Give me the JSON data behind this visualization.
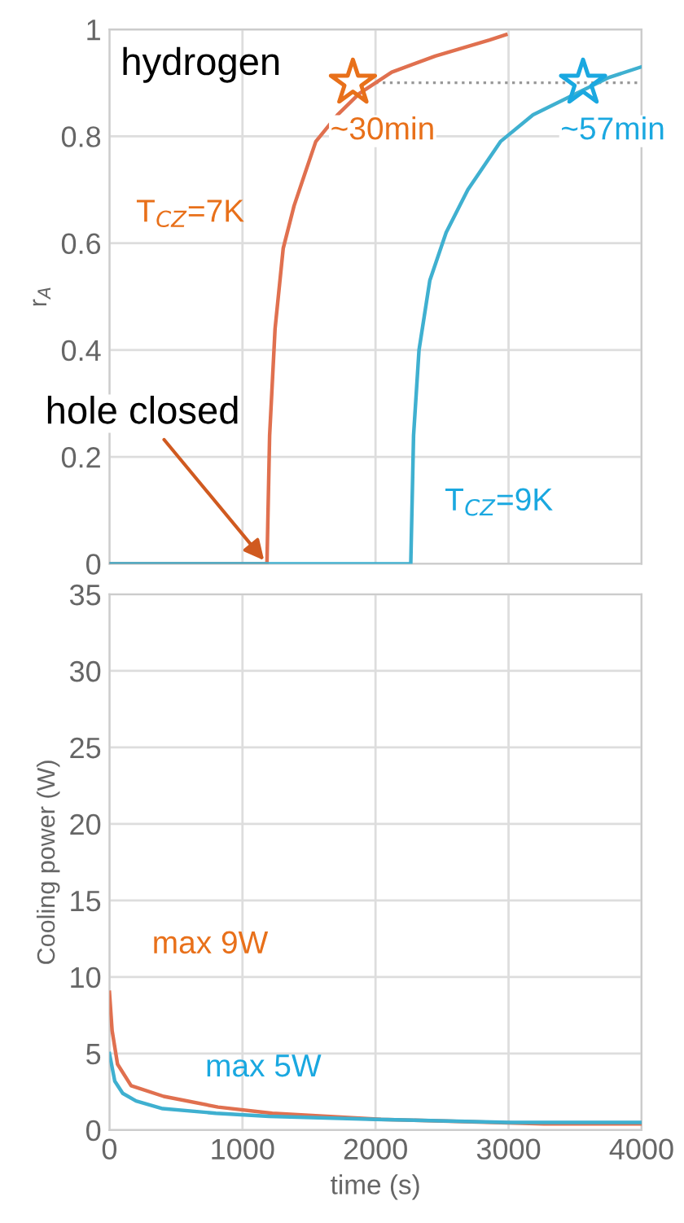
{
  "chart_data": [
    {
      "type": "line",
      "ylabel": "r$_{A}$",
      "xlim": [
        0,
        4000
      ],
      "xticks": [
        0,
        1000,
        2000,
        3000,
        4000
      ],
      "ylim": [
        0,
        1
      ],
      "yticks": [
        0,
        0.2,
        0.4,
        0.6,
        0.8,
        1
      ],
      "tick_labels": "y",
      "grid": true,
      "legend": false,
      "series": [
        {
          "name": "T$_{CZ}$=7K",
          "color": "#e0704f",
          "x": [
            0,
            1184,
            1204,
            1245,
            1306,
            1388,
            1469,
            1551,
            1714,
            1878,
            2122,
            2449,
            2857,
            2980
          ],
          "values": [
            0,
            0,
            0.24,
            0.44,
            0.59,
            0.67,
            0.73,
            0.79,
            0.84,
            0.88,
            0.92,
            0.95,
            0.98,
            0.99
          ]
        },
        {
          "name": "T$_{CZ}$=9K",
          "color": "#3fb0d0",
          "x": [
            0,
            2265,
            2286,
            2327,
            2408,
            2531,
            2694,
            2939,
            3184,
            3510,
            3755,
            4000
          ],
          "values": [
            0,
            0,
            0.24,
            0.4,
            0.53,
            0.62,
            0.7,
            0.79,
            0.84,
            0.88,
            0.91,
            0.93
          ]
        },
        {
          "type": "scatter",
          "marker": "star",
          "x": [
            1830,
            3560
          ],
          "values": [
            0.9,
            0.9
          ],
          "colors": [
            "#e8701a",
            "#1aa8e0"
          ]
        }
      ],
      "ref_lines": [
        {
          "axis": "y",
          "value": 0.9,
          "label": "hydrogen",
          "color": "#999999",
          "line_style": "dotted"
        }
      ],
      "annotations": [
        {
          "text": "~30min",
          "x": 1830,
          "y": 0.9
        },
        {
          "text": "~57min",
          "x": 3560,
          "y": 0.9
        },
        {
          "text": "hole closed",
          "x": 1184,
          "y": 0
        }
      ]
    },
    {
      "type": "line",
      "xlabel": "time (s)",
      "ylabel": "Cooling power (W)",
      "xlim": [
        0,
        4000
      ],
      "xticks": [
        0,
        1000,
        2000,
        3000,
        4000
      ],
      "ylim": [
        0,
        35
      ],
      "yticks": [
        0,
        5,
        10,
        15,
        20,
        25,
        30,
        35
      ],
      "grid": true,
      "legend": false,
      "series": [
        {
          "name": "max 9W",
          "color": "#e0704f",
          "x": [
            0,
            20,
            61,
            163,
            408,
            816,
            1224,
            2041,
            3265,
            4000
          ],
          "values": [
            9.0,
            6.5,
            4.3,
            2.9,
            2.2,
            1.5,
            1.1,
            0.7,
            0.4,
            0.4
          ]
        },
        {
          "name": "max 5W",
          "color": "#3fb0d0",
          "x": [
            0,
            40,
            100,
            200,
            400,
            800,
            1200,
            2000,
            3000,
            4000
          ],
          "values": [
            5.0,
            3.2,
            2.4,
            1.9,
            1.4,
            1.1,
            0.9,
            0.7,
            0.5,
            0.5
          ]
        }
      ]
    }
  ]
}
